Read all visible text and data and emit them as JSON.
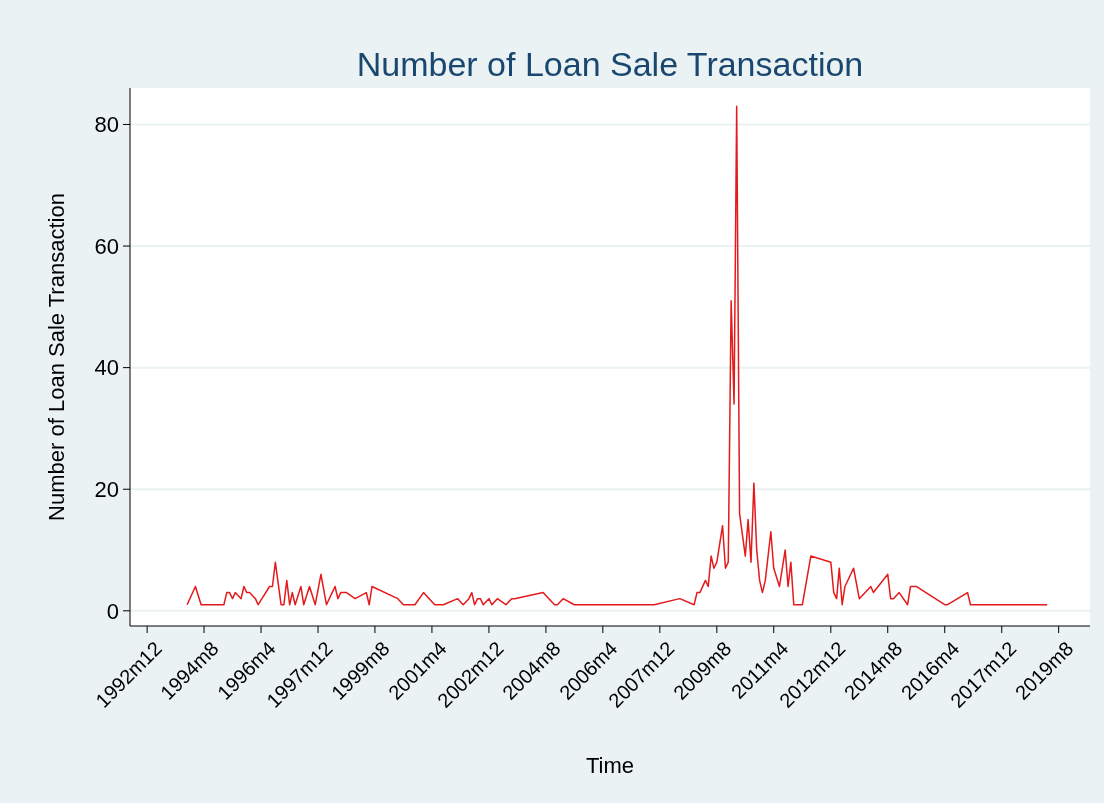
{
  "chart_data": {
    "type": "line",
    "title": "Number of Loan Sale Transaction",
    "xlabel": "Time",
    "ylabel": "Number of Loan Sale Transaction",
    "x": [
      "1994-02",
      "1994-05",
      "1994-07",
      "1995-03",
      "1995-04",
      "1995-05",
      "1995-06",
      "1995-07",
      "1995-09",
      "1995-10",
      "1995-11",
      "1995-12",
      "1996-02",
      "1996-03",
      "1996-07",
      "1996-08",
      "1996-09",
      "1996-11",
      "1996-12",
      "1997-01",
      "1997-02",
      "1997-03",
      "1997-04",
      "1997-06",
      "1997-07",
      "1997-09",
      "1997-11",
      "1998-01",
      "1998-03",
      "1998-05",
      "1998-06",
      "1998-07",
      "1998-08",
      "1998-10",
      "1999-01",
      "1999-05",
      "1999-06",
      "1999-07",
      "2000-04",
      "2000-06",
      "2000-10",
      "2001-01",
      "2001-05",
      "2001-08",
      "2002-01",
      "2002-03",
      "2002-05",
      "2002-06",
      "2002-07",
      "2002-08",
      "2002-09",
      "2002-10",
      "2002-12",
      "2003-01",
      "2003-03",
      "2003-06",
      "2003-08",
      "2003-09",
      "2004-07",
      "2004-11",
      "2004-12",
      "2005-02",
      "2005-06",
      "2007-10",
      "2008-07",
      "2008-12",
      "2009-01",
      "2009-02",
      "2009-04",
      "2009-05",
      "2009-06",
      "2009-07",
      "2009-08",
      "2009-10",
      "2009-11",
      "2009-12",
      "2010-01",
      "2010-02",
      "2010-03",
      "2010-04",
      "2010-06",
      "2010-07",
      "2010-08",
      "2010-09",
      "2010-10",
      "2010-11",
      "2010-12",
      "2011-01",
      "2011-03",
      "2011-04",
      "2011-06",
      "2011-08",
      "2011-09",
      "2011-10",
      "2011-11",
      "2012-02",
      "2012-05",
      "2012-12",
      "2013-01",
      "2013-02",
      "2013-03",
      "2013-04",
      "2013-05",
      "2013-08",
      "2013-10",
      "2014-02",
      "2014-03",
      "2014-08",
      "2014-09",
      "2014-10",
      "2014-12",
      "2015-03",
      "2015-04",
      "2015-06",
      "2016-04",
      "2016-05",
      "2016-12",
      "2017-01",
      "2019-04"
    ],
    "series": [
      {
        "color": "#e41a1c",
        "values": [
          1,
          4,
          1,
          1,
          3,
          3,
          2,
          3,
          2,
          4,
          3,
          3,
          2,
          1,
          4,
          4,
          8,
          1,
          1,
          5,
          1,
          3,
          1,
          4,
          1,
          4,
          1,
          6,
          1,
          3,
          4,
          2,
          3,
          3,
          2,
          3,
          1,
          4,
          2,
          1,
          1,
          3,
          1,
          1,
          2,
          1,
          2,
          3,
          1,
          2,
          2,
          1,
          2,
          1,
          2,
          1,
          2,
          2,
          3,
          1,
          1,
          2,
          1,
          1,
          2,
          1,
          3,
          3,
          5,
          4,
          9,
          7,
          8,
          14,
          7,
          8,
          51,
          34,
          83,
          16,
          9,
          15,
          8,
          21,
          10,
          5,
          3,
          5,
          13,
          7,
          4,
          10,
          4,
          8,
          1,
          1,
          9,
          8,
          3,
          2,
          7,
          1,
          4,
          7,
          2,
          4,
          3,
          6,
          2,
          2,
          3,
          1,
          4,
          4,
          1,
          1,
          3,
          1,
          1
        ]
      }
    ],
    "xlim": [
      "1992-06",
      "2020-07"
    ],
    "xticks": [
      {
        "value": "1992-12",
        "label": "1992m12"
      },
      {
        "value": "1994-08",
        "label": "1994m8"
      },
      {
        "value": "1996-04",
        "label": "1996m4"
      },
      {
        "value": "1997-12",
        "label": "1997m12"
      },
      {
        "value": "1999-08",
        "label": "1999m8"
      },
      {
        "value": "2001-04",
        "label": "2001m4"
      },
      {
        "value": "2002-12",
        "label": "2002m12"
      },
      {
        "value": "2004-08",
        "label": "2004m8"
      },
      {
        "value": "2006-04",
        "label": "2006m4"
      },
      {
        "value": "2007-12",
        "label": "2007m12"
      },
      {
        "value": "2009-08",
        "label": "2009m8"
      },
      {
        "value": "2011-04",
        "label": "2011m4"
      },
      {
        "value": "2012-12",
        "label": "2012m12"
      },
      {
        "value": "2014-08",
        "label": "2014m8"
      },
      {
        "value": "2016-04",
        "label": "2016m4"
      },
      {
        "value": "2017-12",
        "label": "2017m12"
      },
      {
        "value": "2019-08",
        "label": "2019m8"
      }
    ],
    "ylim": [
      -2.5,
      86
    ],
    "yticks": [
      0,
      20,
      40,
      60,
      80
    ],
    "grid": "y",
    "line_style": "solid"
  }
}
